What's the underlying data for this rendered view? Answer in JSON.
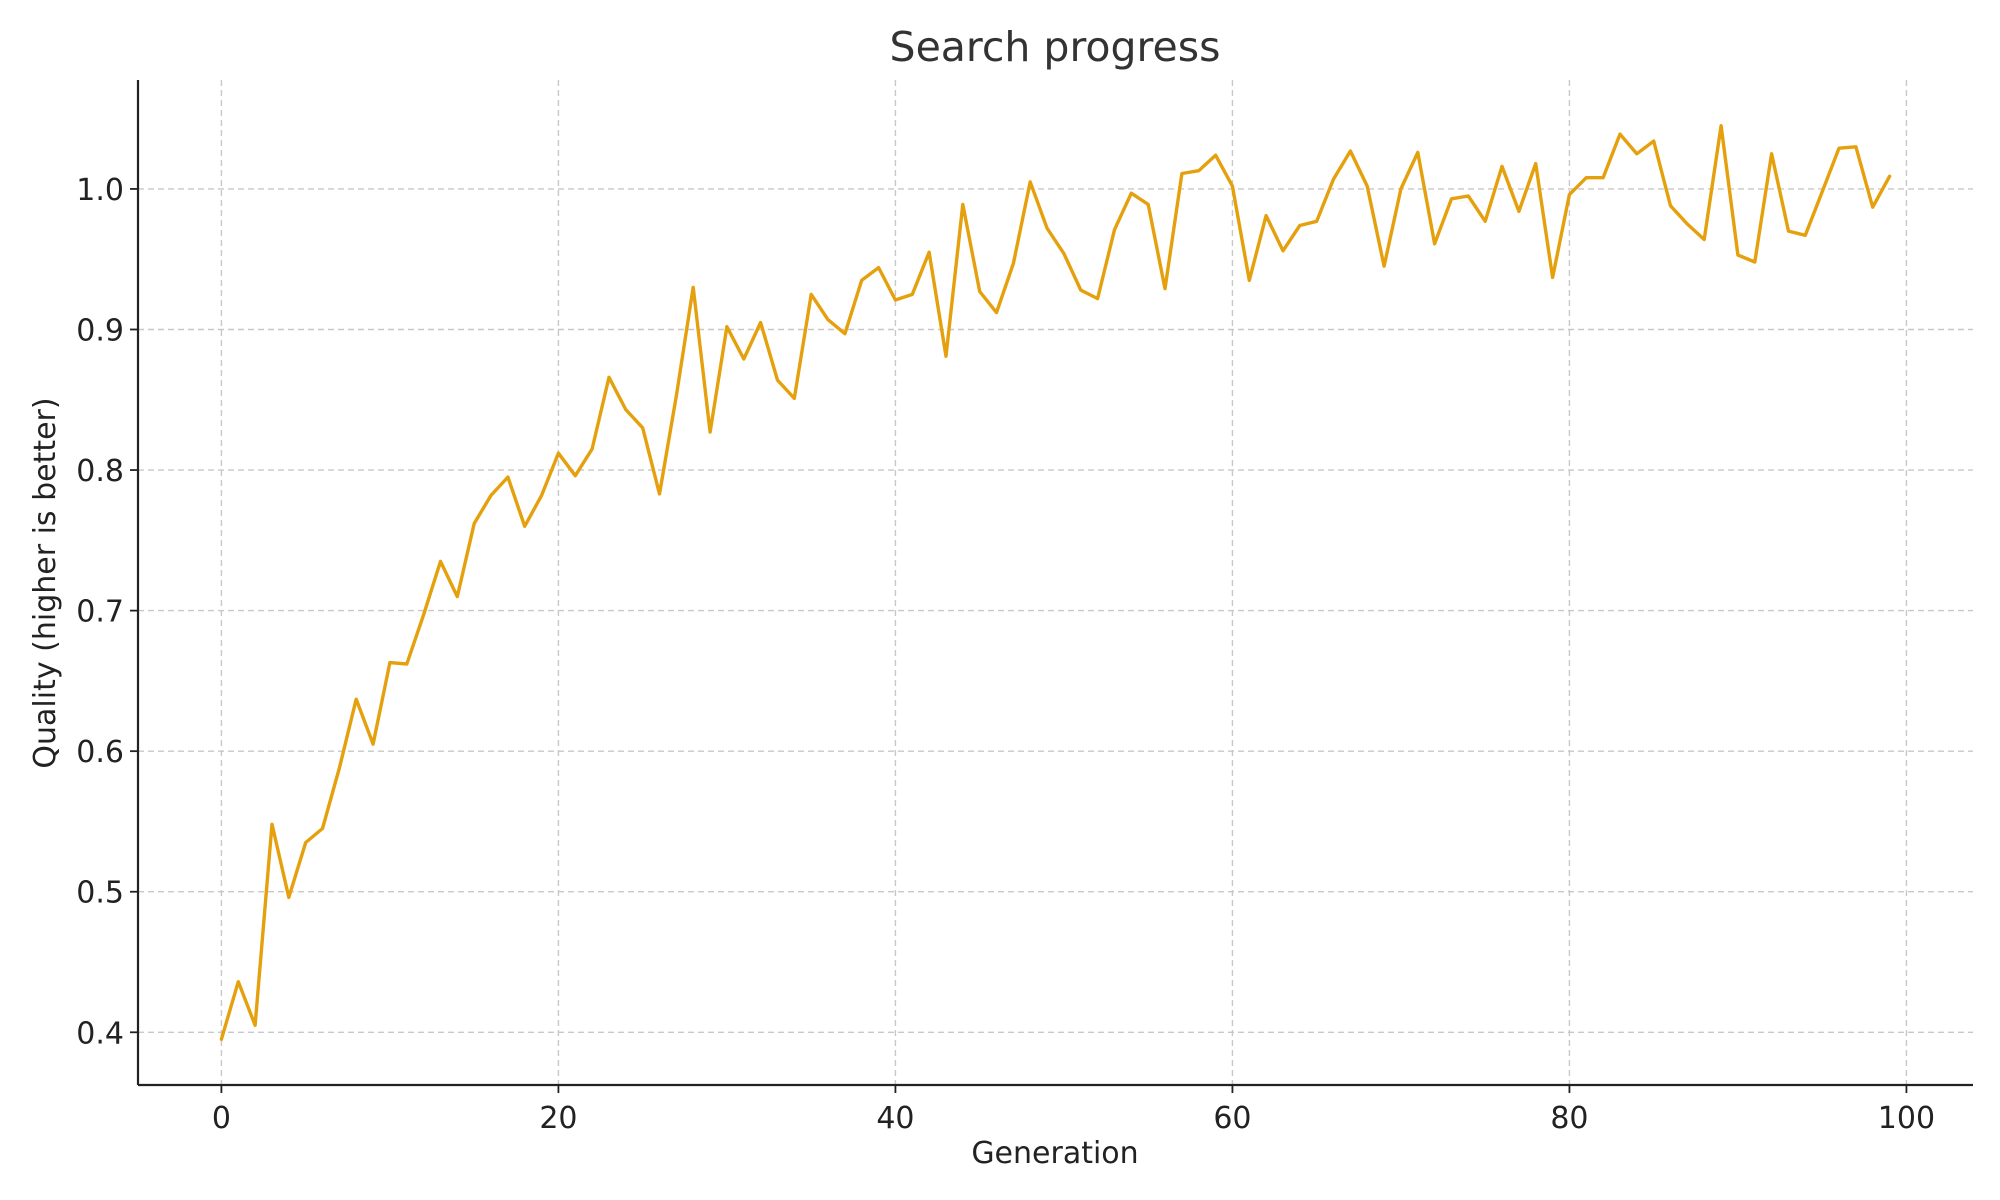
{
  "colors": {
    "series": "#E5A00D",
    "grid": "#C8C8C8",
    "spine": "#222222"
  },
  "chart_data": {
    "type": "line",
    "title": "Search progress",
    "xlabel": "Generation",
    "ylabel": "Quality (higher is better)",
    "xlim": [
      -4.95,
      103.95
    ],
    "ylim": [
      0.3625,
      1.0775
    ],
    "xticks": [
      0,
      20,
      40,
      60,
      80,
      100
    ],
    "xtick_labels": [
      "0",
      "20",
      "40",
      "60",
      "80",
      "100"
    ],
    "yticks": [
      0.4,
      0.5,
      0.6,
      0.7,
      0.8,
      0.9,
      1.0
    ],
    "ytick_labels": [
      "0.4",
      "0.5",
      "0.6",
      "0.7",
      "0.8",
      "0.9",
      "1.0"
    ],
    "grid": true,
    "legend": "none",
    "series": [
      {
        "color": "#E5A00D",
        "x": [
          0,
          1,
          2,
          3,
          4,
          5,
          6,
          7,
          8,
          9,
          10,
          11,
          12,
          13,
          14,
          15,
          16,
          17,
          18,
          19,
          20,
          21,
          22,
          23,
          24,
          25,
          26,
          27,
          28,
          29,
          30,
          31,
          32,
          33,
          34,
          35,
          36,
          37,
          38,
          39,
          40,
          41,
          42,
          43,
          44,
          45,
          46,
          47,
          48,
          49,
          50,
          51,
          52,
          53,
          54,
          55,
          56,
          57,
          58,
          59,
          60,
          61,
          62,
          63,
          64,
          65,
          66,
          67,
          68,
          69,
          70,
          71,
          72,
          73,
          74,
          75,
          76,
          77,
          78,
          79,
          80,
          81,
          82,
          83,
          84,
          85,
          86,
          87,
          88,
          89,
          90,
          91,
          92,
          93,
          94,
          95,
          96,
          97,
          98,
          99
        ],
        "y": [
          0.395,
          0.436,
          0.405,
          0.548,
          0.496,
          0.535,
          0.545,
          0.588,
          0.637,
          0.605,
          0.663,
          0.662,
          0.697,
          0.735,
          0.71,
          0.762,
          0.782,
          0.795,
          0.76,
          0.782,
          0.812,
          0.796,
          0.815,
          0.866,
          0.843,
          0.83,
          0.783,
          0.853,
          0.93,
          0.827,
          0.902,
          0.879,
          0.905,
          0.864,
          0.851,
          0.925,
          0.907,
          0.897,
          0.935,
          0.944,
          0.921,
          0.925,
          0.955,
          0.881,
          0.989,
          0.927,
          0.912,
          0.947,
          1.005,
          0.972,
          0.954,
          0.928,
          0.922,
          0.971,
          0.997,
          0.989,
          0.929,
          1.011,
          1.013,
          1.024,
          1.002,
          0.935,
          0.981,
          0.956,
          0.974,
          0.977,
          1.007,
          1.027,
          1.002,
          0.945,
          1.0,
          1.026,
          0.961,
          0.993,
          0.995,
          0.977,
          1.016,
          0.984,
          1.018,
          0.937,
          0.996,
          1.008,
          1.008,
          1.039,
          1.025,
          1.034,
          0.988,
          0.975,
          0.964,
          1.045,
          0.953,
          0.948,
          1.025,
          0.97,
          0.967,
          0.998,
          1.029,
          1.03,
          0.987,
          1.009
        ]
      }
    ]
  }
}
